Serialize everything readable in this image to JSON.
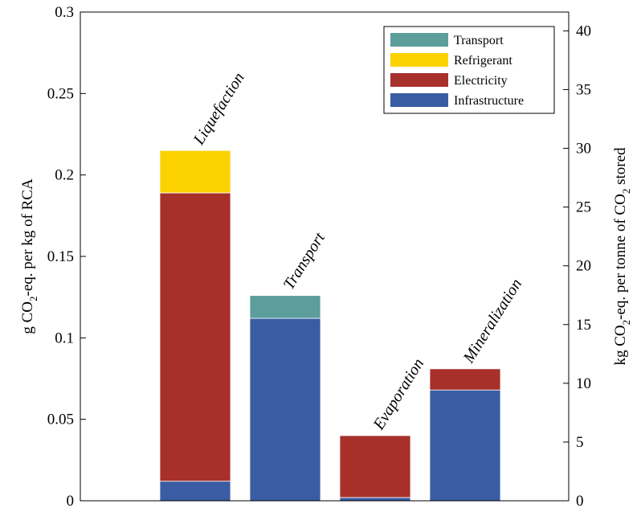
{
  "chart_data": {
    "type": "bar",
    "stacked": true,
    "categories": [
      "Liquefaction",
      "Transport",
      "Evaporation",
      "Mineralization"
    ],
    "series": [
      {
        "name": "Infrastructure",
        "color": "#3a5ca3",
        "values": [
          0.012,
          0.112,
          0.002,
          0.068
        ]
      },
      {
        "name": "Electricity",
        "color": "#a8302b",
        "values": [
          0.177,
          0.0,
          0.038,
          0.013
        ]
      },
      {
        "name": "Refrigerant",
        "color": "#fcd200",
        "values": [
          0.026,
          0.0,
          0.0,
          0.0
        ]
      },
      {
        "name": "Transport",
        "color": "#5b9e9b",
        "values": [
          0.0,
          0.014,
          0.0,
          0.0
        ]
      }
    ],
    "ylabel_left": {
      "prefix": "g CO",
      "sub": "2",
      "suffix": "-eq. per kg of RCA"
    },
    "ylabel_right": {
      "prefix": "kg CO",
      "sub1": "2",
      "middle": "-eq. per tonne of CO",
      "sub2": "2",
      "suffix": " stored"
    },
    "ylim_left": [
      0,
      0.3
    ],
    "yticks_left": [
      "0",
      "0.05",
      "0.1",
      "0.15",
      "0.2",
      "0.25",
      "0.3"
    ],
    "ylim_right": [
      0,
      41.6
    ],
    "yticks_right": [
      "0",
      "5",
      "10",
      "15",
      "20",
      "25",
      "30",
      "35",
      "40"
    ],
    "legend_order": [
      "Transport",
      "Refrigerant",
      "Electricity",
      "Infrastructure"
    ],
    "legend_position": "top-right",
    "grid": false
  }
}
